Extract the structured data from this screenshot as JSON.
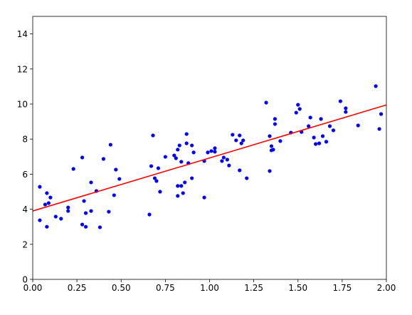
{
  "chart_data": {
    "type": "scatter",
    "xlim": [
      0,
      2
    ],
    "ylim": [
      0,
      15
    ],
    "xticks": [
      {
        "value": 0,
        "label": "0.00"
      },
      0.25,
      {
        "value": 0.5,
        "label": "0.50"
      },
      0.75,
      {
        "value": 1,
        "label": "1.00"
      },
      1.25,
      {
        "value": 1.5,
        "label": "1.50"
      },
      1.75,
      {
        "value": 2,
        "label": "2.00"
      }
    ],
    "yticks": [
      0,
      2,
      4,
      6,
      8,
      10,
      12,
      14
    ],
    "series": [
      {
        "type": "scatter",
        "color": "#0000ff",
        "x": [
          0.04,
          0.04,
          0.07,
          0.08,
          0.08,
          0.09,
          0.1,
          0.13,
          0.16,
          0.2,
          0.2,
          0.23,
          0.28,
          0.29,
          0.28,
          0.3,
          0.3,
          0.33,
          0.33,
          0.36,
          0.38,
          0.4,
          0.43,
          0.44,
          0.46,
          0.47,
          0.49,
          0.66,
          0.67,
          0.68,
          0.69,
          0.7,
          0.71,
          0.72,
          0.75,
          0.8,
          0.81,
          0.82,
          0.82,
          0.82,
          0.83,
          0.84,
          0.85,
          0.84,
          0.86,
          0.87,
          0.87,
          0.88,
          0.9,
          0.9,
          0.91,
          0.97,
          0.97,
          0.99,
          1.01,
          1.03,
          1.03,
          1.07,
          1.08,
          1.1,
          1.11,
          1.13,
          1.15,
          1.17,
          1.17,
          1.18,
          1.19,
          1.21,
          1.32,
          1.34,
          1.34,
          1.35,
          1.35,
          1.36,
          1.37,
          1.37,
          1.4,
          1.46,
          1.49,
          1.5,
          1.51,
          1.52,
          1.56,
          1.57,
          1.59,
          1.6,
          1.62,
          1.63,
          1.64,
          1.66,
          1.68,
          1.7,
          1.74,
          1.77,
          1.77,
          1.84,
          1.94,
          1.96,
          1.97
        ],
        "values": [
          5.28,
          3.37,
          4.27,
          3.0,
          4.92,
          4.35,
          4.67,
          3.58,
          3.46,
          4.1,
          3.9,
          6.3,
          6.95,
          4.47,
          3.13,
          3.0,
          3.78,
          5.53,
          3.9,
          5.04,
          2.97,
          6.87,
          3.86,
          7.68,
          4.8,
          6.26,
          5.73,
          3.7,
          6.46,
          8.21,
          5.77,
          5.61,
          6.34,
          5.0,
          6.99,
          7.07,
          6.91,
          7.4,
          4.76,
          5.33,
          7.64,
          6.71,
          4.92,
          5.33,
          5.53,
          8.29,
          7.76,
          6.63,
          7.64,
          5.77,
          7.24,
          6.75,
          4.67,
          7.24,
          7.32,
          7.48,
          7.28,
          6.75,
          6.95,
          6.83,
          6.5,
          8.25,
          7.93,
          8.21,
          6.22,
          7.76,
          7.93,
          5.77,
          10.08,
          6.18,
          8.17,
          7.36,
          7.6,
          7.4,
          8.86,
          9.15,
          7.89,
          8.37,
          9.51,
          9.96,
          9.72,
          8.41,
          8.74,
          9.23,
          8.09,
          7.72,
          7.76,
          9.15,
          8.17,
          7.85,
          8.74,
          8.5,
          10.16,
          9.76,
          9.55,
          8.78,
          11.02,
          8.58,
          9.43
        ]
      },
      {
        "type": "line",
        "color": "#ff0000",
        "x": [
          0,
          2
        ],
        "values": [
          3.9,
          9.95
        ]
      }
    ]
  }
}
